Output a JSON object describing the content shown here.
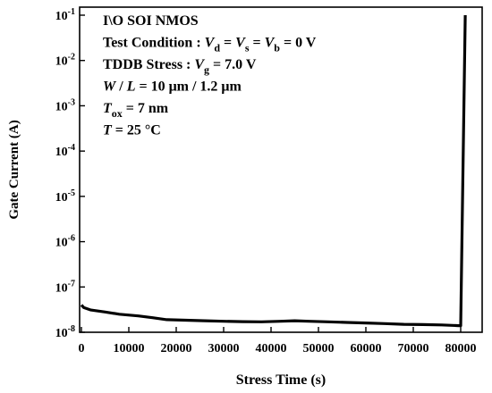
{
  "chart_data": {
    "type": "line",
    "title": "",
    "xlabel": "Stress Time (s)",
    "ylabel": "Gate Current (A)",
    "xlim": [
      0,
      80000
    ],
    "ylim": [
      1e-08,
      0.1
    ],
    "y_scale": "log",
    "grid": false,
    "x_ticks": [
      0,
      10000,
      20000,
      30000,
      40000,
      50000,
      60000,
      70000,
      80000
    ],
    "x_tick_labels": [
      "0",
      "10000",
      "20000",
      "30000",
      "40000",
      "50000",
      "60000",
      "70000",
      "80000"
    ],
    "y_ticks": [
      {
        "value": 1e-08,
        "base": "10",
        "exp": "-8"
      },
      {
        "value": 1e-07,
        "base": "10",
        "exp": "-7"
      },
      {
        "value": 1e-06,
        "base": "10",
        "exp": "-6"
      },
      {
        "value": 1e-05,
        "base": "10",
        "exp": "-5"
      },
      {
        "value": 0.0001,
        "base": "10",
        "exp": "-4"
      },
      {
        "value": 0.001,
        "base": "10",
        "exp": "-3"
      },
      {
        "value": 0.01,
        "base": "10",
        "exp": "-2"
      },
      {
        "value": 0.1,
        "base": "10",
        "exp": "-1"
      }
    ],
    "series": [
      {
        "color": "#000000",
        "x": [
          0,
          500,
          2000,
          5000,
          8000,
          12000,
          15000,
          18000,
          22000,
          26000,
          30000,
          34000,
          38000,
          42000,
          45000,
          48000,
          52000,
          56000,
          60000,
          64000,
          68000,
          72000,
          76000,
          79500,
          80000,
          80200
        ],
        "y": [
          4e-08,
          3.5e-08,
          3.1e-08,
          2.8e-08,
          2.5e-08,
          2.3e-08,
          2.1e-08,
          1.9e-08,
          1.85e-08,
          1.8e-08,
          1.75e-08,
          1.72e-08,
          1.7e-08,
          1.75e-08,
          1.8e-08,
          1.75e-08,
          1.7e-08,
          1.65e-08,
          1.6e-08,
          1.55e-08,
          1.5e-08,
          1.48e-08,
          1.45e-08,
          1.4e-08,
          1.4e-08,
          0.1
        ]
      }
    ],
    "annotations": [
      {
        "runs": [
          {
            "t": "I\\O SOI NMOS"
          }
        ]
      },
      {
        "runs": [
          {
            "t": "Test Condition : "
          },
          {
            "t": "V",
            "i": true
          },
          {
            "t": "d",
            "sub": true
          },
          {
            "t": " = "
          },
          {
            "t": "V",
            "i": true
          },
          {
            "t": "s",
            "sub": true
          },
          {
            "t": " = "
          },
          {
            "t": "V",
            "i": true
          },
          {
            "t": "b",
            "sub": true
          },
          {
            "t": " = 0 V"
          }
        ]
      },
      {
        "runs": [
          {
            "t": "TDDB Stress : "
          },
          {
            "t": "V",
            "i": true
          },
          {
            "t": "g",
            "sub": true
          },
          {
            "t": " = 7.0 V"
          }
        ]
      },
      {
        "runs": [
          {
            "t": "W",
            "i": true
          },
          {
            "t": " / "
          },
          {
            "t": "L",
            "i": true
          },
          {
            "t": " = 10 μm / 1.2 μm"
          }
        ]
      },
      {
        "runs": [
          {
            "t": "T",
            "i": true
          },
          {
            "t": "ox",
            "sub": true
          },
          {
            "t": " = 7 nm"
          }
        ]
      },
      {
        "runs": [
          {
            "t": "T",
            "i": true
          },
          {
            "t": " = 25 °C"
          }
        ]
      }
    ]
  }
}
